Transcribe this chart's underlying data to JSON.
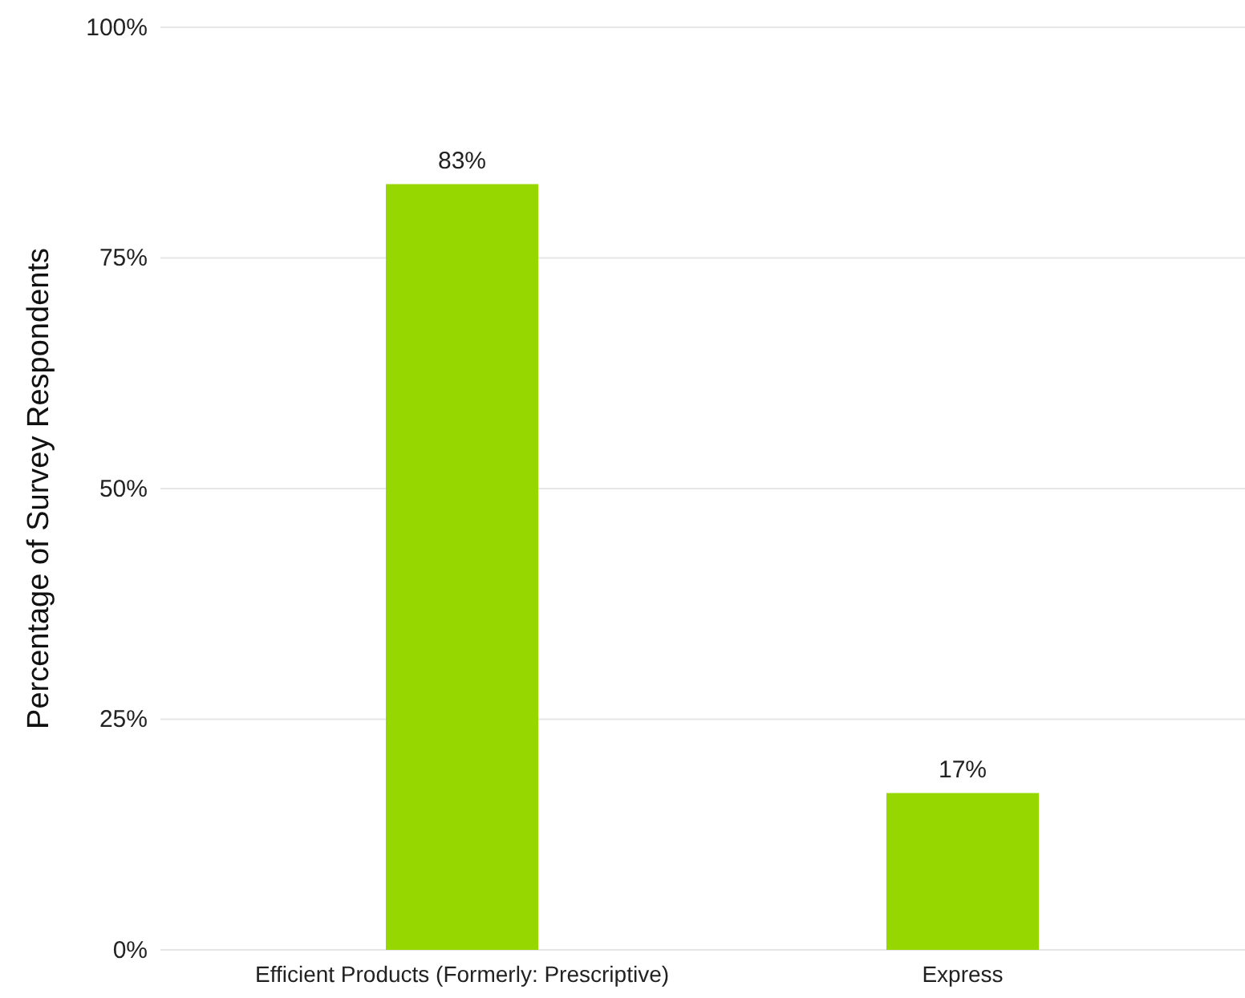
{
  "chart_data": {
    "type": "bar",
    "ylabel": "Percentage of Survey Respondents",
    "categories": [
      "Efficient Products (Formerly: Prescriptive)",
      "Express"
    ],
    "values": [
      83,
      17
    ],
    "value_labels": [
      "83%",
      "17%"
    ],
    "color": "#97d700",
    "ylim": [
      0,
      100
    ],
    "yticks": [
      {
        "value": 0,
        "label": "0%"
      },
      {
        "value": 25,
        "label": "25%"
      },
      {
        "value": 50,
        "label": "50%"
      },
      {
        "value": 75,
        "label": "75%"
      },
      {
        "value": 100,
        "label": "100%"
      }
    ],
    "grid": "y"
  }
}
